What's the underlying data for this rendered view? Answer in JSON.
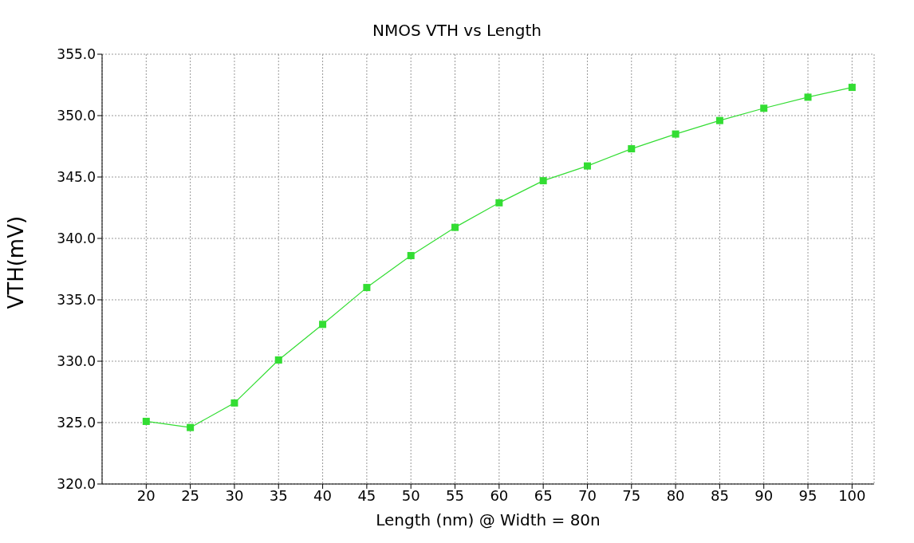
{
  "chart_data": {
    "type": "line",
    "title": "NMOS VTH vs Length",
    "xlabel": "Length (nm) @ Width = 80n",
    "ylabel": "VTH(mV)",
    "x": [
      20,
      25,
      30,
      35,
      40,
      45,
      50,
      55,
      60,
      65,
      70,
      75,
      80,
      85,
      90,
      95,
      100
    ],
    "series": [
      {
        "color": "#33dd33",
        "values": [
          325.1,
          324.6,
          326.6,
          330.1,
          333.0,
          336.0,
          338.6,
          340.9,
          342.9,
          344.7,
          345.9,
          347.3,
          348.5,
          349.6,
          350.6,
          351.5,
          352.3
        ]
      }
    ],
    "xlim": [
      15,
      102.5
    ],
    "xticks": [
      20,
      25,
      30,
      35,
      40,
      45,
      50,
      55,
      60,
      65,
      70,
      75,
      80,
      85,
      90,
      95,
      100
    ],
    "ylim": [
      320,
      355
    ],
    "yticks": [
      {
        "value": 320,
        "label": "320.0"
      },
      {
        "value": 325,
        "label": "325.0"
      },
      {
        "value": 330,
        "label": "330.0"
      },
      {
        "value": 335,
        "label": "335.0"
      },
      {
        "value": 340,
        "label": "340.0"
      },
      {
        "value": 345,
        "label": "345.0"
      },
      {
        "value": 350,
        "label": "350.0"
      },
      {
        "value": 355,
        "label": "355.0"
      }
    ],
    "grid": true,
    "marker": "square",
    "legend": false
  }
}
